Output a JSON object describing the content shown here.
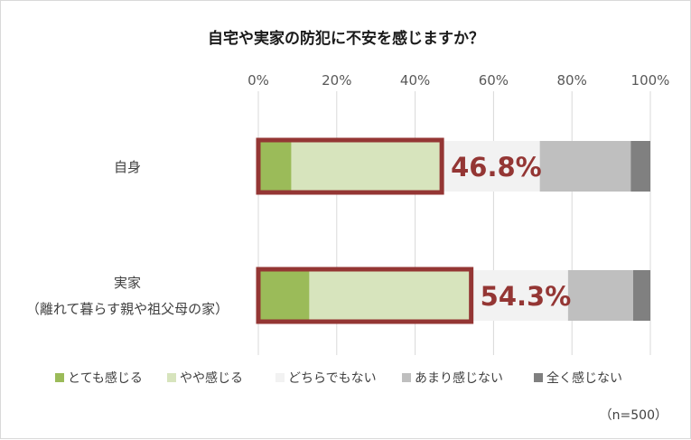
{
  "chart_data": {
    "type": "bar",
    "orientation": "horizontal-stacked-100",
    "title": "自宅や実家の防犯に不安を感じますか？",
    "xlim": [
      0,
      100
    ],
    "x_ticks": [
      "0%",
      "20%",
      "40%",
      "60%",
      "80%",
      "100%"
    ],
    "grid": true,
    "categories": [
      {
        "lines": [
          "自身"
        ]
      },
      {
        "lines": [
          "実家",
          "（離れて暮らす親や祖父母の家）"
        ]
      }
    ],
    "series": [
      {
        "name": "とても感じる",
        "color": "#9bbb59",
        "values": [
          8.4,
          13.0
        ]
      },
      {
        "name": "やや感じる",
        "color": "#d7e4bd",
        "values": [
          38.4,
          41.3
        ]
      },
      {
        "name": "どちらでもない",
        "color": "#f2f2f2",
        "values": [
          25.0,
          24.7
        ]
      },
      {
        "name": "あまり感じない",
        "color": "#bfbfbf",
        "values": [
          23.2,
          16.6
        ]
      },
      {
        "name": "全く感じない",
        "color": "#808080",
        "values": [
          5.0,
          4.4
        ]
      }
    ],
    "callouts": [
      "46.8%",
      "54.3%"
    ],
    "highlight_color": "#943634",
    "legend_position": "bottom",
    "note": "（n=500）"
  }
}
